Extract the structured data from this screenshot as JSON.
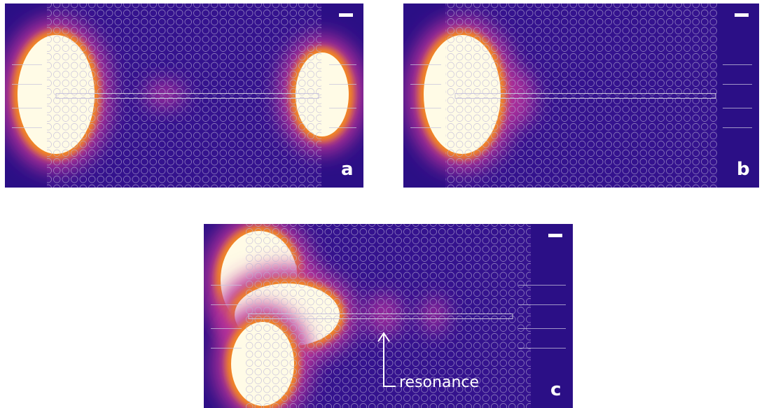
{
  "panels": [
    {
      "label": "a"
    },
    {
      "label": "b"
    },
    {
      "label": "c",
      "annotation": "resonance"
    }
  ]
}
